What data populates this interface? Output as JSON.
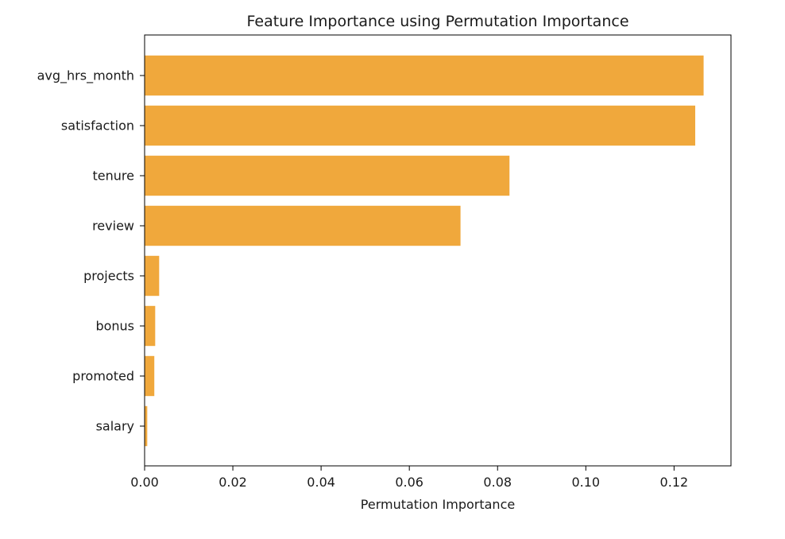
{
  "chart_data": {
    "type": "bar",
    "orientation": "horizontal",
    "title": "Feature Importance using Permutation Importance",
    "xlabel": "Permutation Importance",
    "ylabel": "",
    "categories": [
      "avg_hrs_month",
      "satisfaction",
      "tenure",
      "review",
      "projects",
      "bonus",
      "promoted",
      "salary"
    ],
    "values": [
      0.1267,
      0.1248,
      0.0827,
      0.0716,
      0.0033,
      0.0024,
      0.0022,
      0.0006
    ],
    "xlim": [
      0,
      0.1329
    ],
    "xticks": [
      0.0,
      0.02,
      0.04,
      0.06,
      0.08,
      0.1,
      0.12
    ],
    "xtick_labels": [
      "0.00",
      "0.02",
      "0.04",
      "0.06",
      "0.08",
      "0.10",
      "0.12"
    ],
    "bar_color": "#f0a83c",
    "grid": false,
    "legend": "none"
  }
}
